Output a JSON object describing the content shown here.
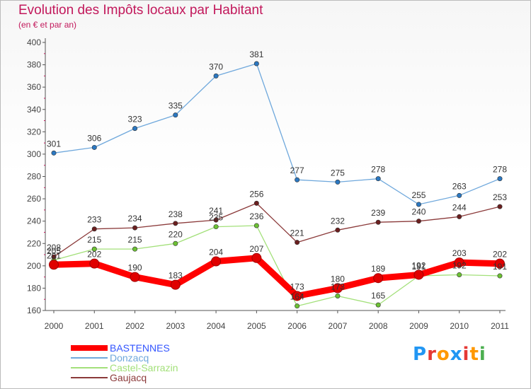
{
  "title": "Evolution des Impôts locaux par Habitant",
  "subtitle": "(en € et par an)",
  "logo": {
    "text": "Proxiti",
    "letter_colors": [
      "#2196f3",
      "#e53935",
      "#ff9800",
      "#2196f3",
      "#e53935",
      "#ff9800",
      "#4caf50"
    ]
  },
  "chart_data": {
    "type": "line",
    "title": "Evolution des Impôts locaux par Habitant",
    "subtitle": "(en € et par an)",
    "x": [
      "2000",
      "2001",
      "2002",
      "2003",
      "2004",
      "2005",
      "2006",
      "2007",
      "2008",
      "2009",
      "2010",
      "2011"
    ],
    "y_ticks": [
      160,
      180,
      200,
      220,
      240,
      260,
      280,
      300,
      320,
      340,
      360,
      380,
      400
    ],
    "ylim": [
      160,
      400
    ],
    "grid": false,
    "legend_position": "bottom-left",
    "series": [
      {
        "name": "BASTENNES",
        "color": "#ff0000",
        "label_color": "#3355ff",
        "emphasis": true,
        "values": [
          201,
          202,
          190,
          183,
          204,
          207,
          173,
          180,
          189,
          192,
          203,
          202
        ],
        "labels": [
          "201",
          "202",
          "190",
          "183",
          "204",
          "207",
          "173",
          "180",
          "189",
          "192",
          "203",
          "202"
        ]
      },
      {
        "name": "Donzacq",
        "color": "#6fa8dc",
        "marker": "#2b78c2",
        "values": [
          301,
          306,
          323,
          335,
          370,
          381,
          277,
          275,
          278,
          255,
          263,
          278
        ],
        "labels": [
          "301",
          "306",
          "323",
          "335",
          "370",
          "381",
          "277",
          "275",
          "278",
          "255",
          "263",
          "278"
        ]
      },
      {
        "name": "Castel-Sarrazin",
        "color": "#a3e07a",
        "marker": "#6cc133",
        "values": [
          205,
          215,
          215,
          220,
          235,
          236,
          164,
          173,
          165,
          191,
          192,
          191
        ],
        "labels": [
          "205",
          "215",
          "215",
          "220",
          "235",
          "236",
          "164",
          "173",
          "165",
          "191",
          "192",
          "191"
        ]
      },
      {
        "name": "Gaujacq",
        "color": "#8b3a3a",
        "marker": "#6b1f1f",
        "values": [
          208,
          233,
          234,
          238,
          241,
          256,
          221,
          232,
          239,
          240,
          244,
          253
        ],
        "labels": [
          "208",
          "233",
          "234",
          "238",
          "241",
          "256",
          "221",
          "232",
          "239",
          "240",
          "244",
          "253"
        ]
      }
    ]
  }
}
